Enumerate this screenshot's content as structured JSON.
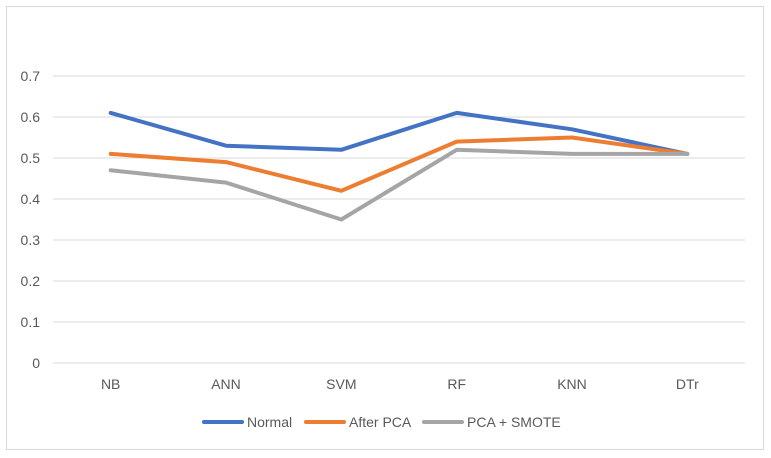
{
  "chart_data": {
    "type": "line",
    "title": "",
    "xlabel": "",
    "ylabel": "",
    "categories": [
      "NB",
      "ANN",
      "SVM",
      "RF",
      "KNN",
      "DTr"
    ],
    "ylim": [
      0,
      0.7
    ],
    "yticks": [
      "0",
      "0.1",
      "0.2",
      "0.3",
      "0.4",
      "0.5",
      "0.6",
      "0.7"
    ],
    "grid": true,
    "legend_position": "bottom",
    "series": [
      {
        "name": "Normal",
        "color": "#4472c4",
        "values": [
          0.61,
          0.53,
          0.52,
          0.61,
          0.57,
          0.51
        ]
      },
      {
        "name": "After PCA",
        "color": "#ed7d31",
        "values": [
          0.51,
          0.49,
          0.42,
          0.54,
          0.55,
          0.51
        ]
      },
      {
        "name": "PCA + SMOTE",
        "color": "#a5a5a5",
        "values": [
          0.47,
          0.44,
          0.35,
          0.52,
          0.51,
          0.51
        ]
      }
    ]
  }
}
